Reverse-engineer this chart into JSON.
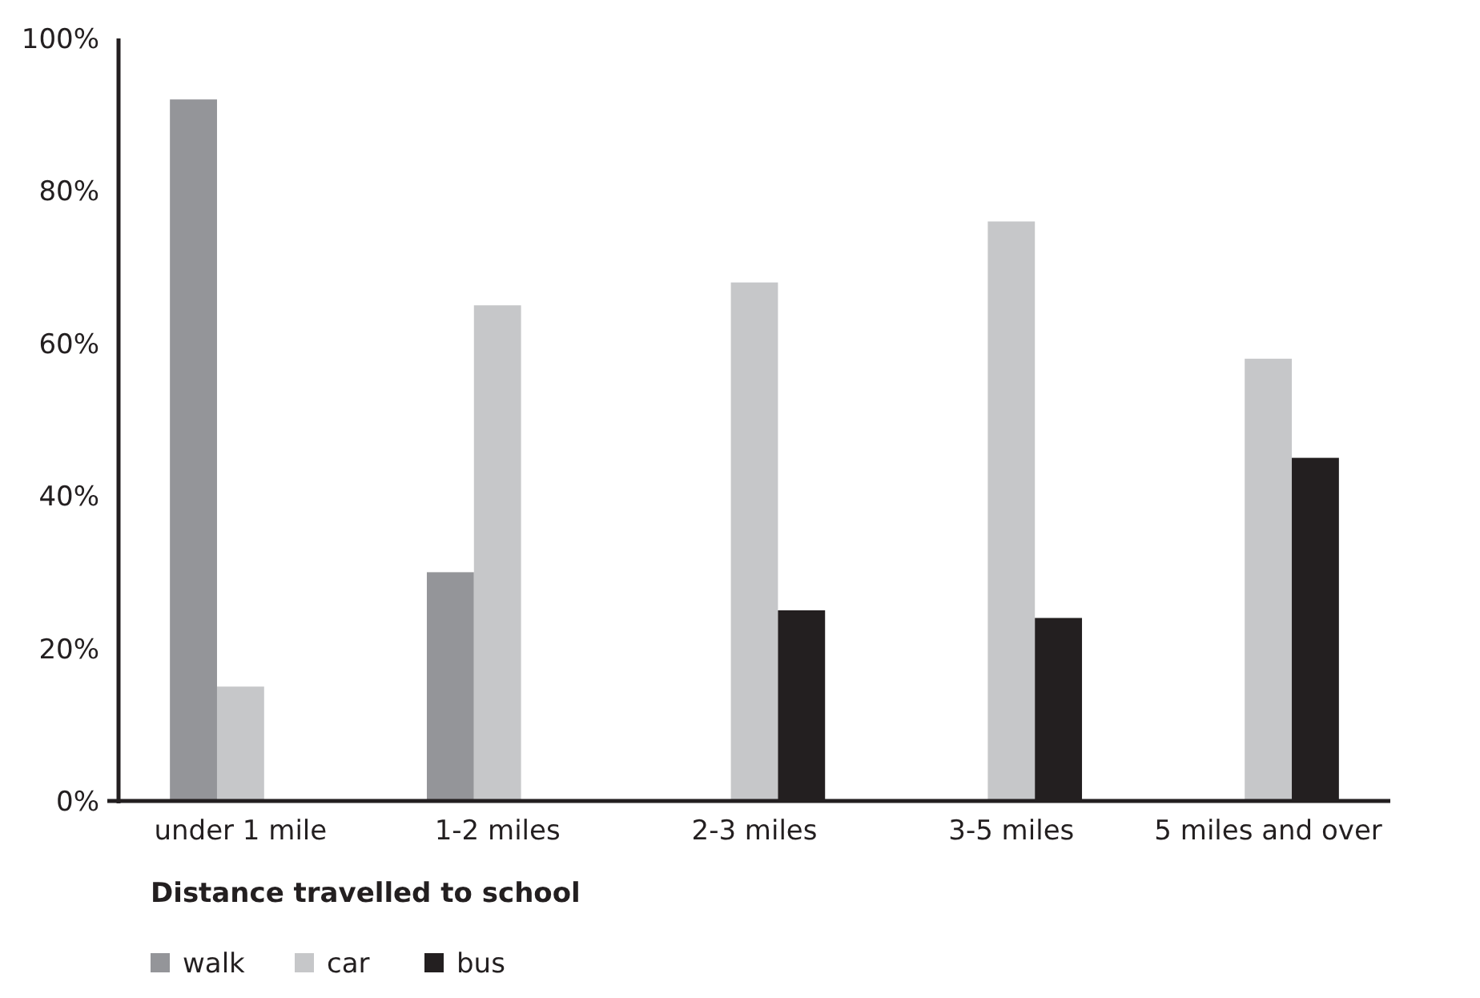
{
  "chart_data": {
    "type": "bar",
    "xlabel": "Distance travelled to school",
    "categories": [
      "under 1 mile",
      "1-2 miles",
      "2-3 miles",
      "3-5 miles",
      "5 miles and over"
    ],
    "series": [
      {
        "name": "walk",
        "color": "#949599",
        "values": [
          92,
          30,
          null,
          null,
          null
        ]
      },
      {
        "name": "car",
        "color": "#c6c7c9",
        "values": [
          15,
          65,
          68,
          76,
          58
        ]
      },
      {
        "name": "bus",
        "color": "#231f20",
        "values": [
          null,
          null,
          25,
          24,
          45
        ]
      }
    ],
    "ylim": [
      0,
      100
    ],
    "yticks": [
      {
        "value": 0,
        "label": "0%"
      },
      {
        "value": 20,
        "label": "20%"
      },
      {
        "value": 40,
        "label": "40%"
      },
      {
        "value": 60,
        "label": "60%"
      },
      {
        "value": 80,
        "label": "80%"
      },
      {
        "value": 100,
        "label": "100%"
      }
    ],
    "grid": false,
    "legend": "bottom left"
  }
}
